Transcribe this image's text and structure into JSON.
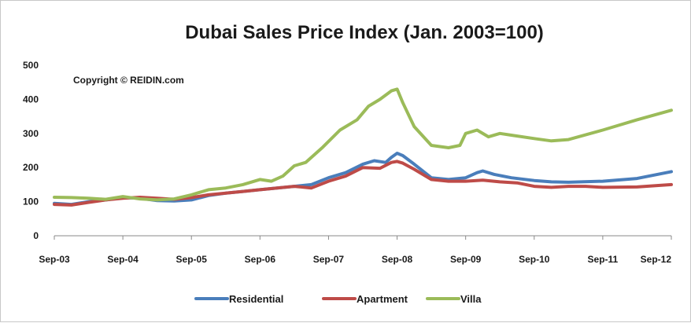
{
  "chart_data": {
    "type": "line",
    "title": "Dubai Sales Price Index (Jan. 2003=100)",
    "annotation": "Copyright © REIDIN.com",
    "xlabel": "",
    "ylabel": "",
    "ylim": [
      0,
      500
    ],
    "yticks": [
      0,
      100,
      200,
      300,
      400,
      500
    ],
    "xlim": [
      0,
      108
    ],
    "xtick_labels": [
      "Sep-03",
      "Sep-04",
      "Sep-05",
      "Sep-06",
      "Sep-07",
      "Sep-08",
      "Sep-09",
      "Sep-10",
      "Sep-11",
      "Sep-12"
    ],
    "xtick_positions": [
      0,
      12,
      24,
      36,
      48,
      60,
      72,
      84,
      96,
      108
    ],
    "legend_position": "bottom",
    "series": [
      {
        "name": "Residential",
        "color": "#4a7ebb",
        "x": [
          0,
          3,
          6,
          9,
          12,
          15,
          18,
          21,
          24,
          27,
          30,
          33,
          36,
          39,
          42,
          45,
          48,
          51,
          54,
          56,
          58,
          59,
          60,
          61,
          63,
          66,
          69,
          72,
          74,
          75,
          77,
          80,
          84,
          87,
          90,
          96,
          102,
          108
        ],
        "y": [
          95,
          92,
          100,
          105,
          112,
          110,
          103,
          102,
          105,
          118,
          125,
          130,
          135,
          140,
          145,
          150,
          170,
          185,
          210,
          220,
          215,
          230,
          242,
          235,
          210,
          170,
          165,
          170,
          185,
          190,
          180,
          170,
          162,
          158,
          157,
          160,
          168,
          188
        ]
      },
      {
        "name": "Apartment",
        "color": "#be4b48",
        "x": [
          0,
          3,
          6,
          9,
          12,
          15,
          18,
          21,
          24,
          27,
          30,
          33,
          36,
          39,
          42,
          45,
          48,
          51,
          54,
          57,
          59,
          60,
          61,
          63,
          66,
          69,
          72,
          75,
          78,
          81,
          84,
          87,
          90,
          93,
          96,
          102,
          108
        ],
        "y": [
          92,
          90,
          98,
          105,
          110,
          113,
          110,
          107,
          112,
          120,
          125,
          130,
          135,
          140,
          145,
          140,
          160,
          175,
          200,
          198,
          215,
          218,
          213,
          195,
          165,
          160,
          160,
          163,
          158,
          155,
          145,
          142,
          145,
          145,
          142,
          143,
          150
        ]
      },
      {
        "name": "Villa",
        "color": "#9bbb59",
        "x": [
          0,
          3,
          6,
          9,
          12,
          15,
          18,
          21,
          24,
          27,
          30,
          33,
          36,
          38,
          40,
          42,
          44,
          47,
          50,
          53,
          55,
          57,
          59,
          60,
          61,
          63,
          66,
          69,
          71,
          72,
          74,
          76,
          78,
          80,
          84,
          87,
          90,
          96,
          102,
          108
        ],
        "y": [
          113,
          112,
          110,
          107,
          115,
          108,
          105,
          108,
          120,
          135,
          140,
          150,
          165,
          160,
          175,
          205,
          215,
          260,
          310,
          340,
          380,
          400,
          425,
          430,
          390,
          320,
          265,
          258,
          265,
          300,
          310,
          290,
          300,
          295,
          285,
          278,
          282,
          310,
          340,
          368
        ]
      }
    ]
  }
}
